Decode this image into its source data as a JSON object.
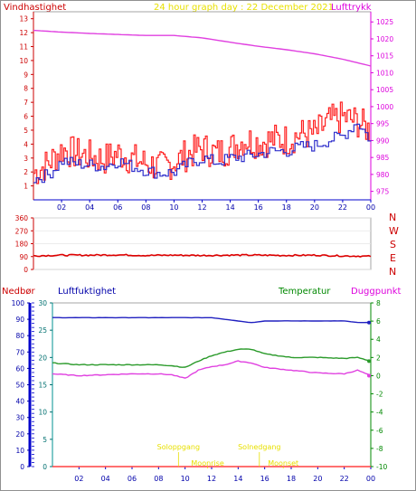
{
  "header": {
    "left_label": "Vindhastighet",
    "title": "24 hour graph day : 22 December 2021",
    "right_label": "Lufttrykk"
  },
  "middle_panel": {
    "direction_letters": [
      "N",
      "W",
      "S",
      "E",
      "N"
    ]
  },
  "bottom_header": {
    "nedbor_label": "Nedbør",
    "luft_label": "Luftfuktighet",
    "temp_label": "Temperatur",
    "dugg_label": "Duggpunkt"
  },
  "annotations": [
    {
      "text": "Soloppgang",
      "x": 9.5
    },
    {
      "text": "Solnedgang",
      "x": 15.6
    },
    {
      "text": "Moonrise",
      "x": 11.7
    },
    {
      "text": "Moonset",
      "x": 17.4
    }
  ],
  "colors": {
    "wind": "#ff2020",
    "wind_avg": "#3030cc",
    "pressure": "#e040e0",
    "direction": "#dd0000",
    "humidity": "#2020c0",
    "temperature": "#2a9a2a",
    "dewpoint": "#e040e0",
    "rain": "#2020ff",
    "sun_text": "#e8e000",
    "frame_blue": "#0000cc",
    "frame_red": "#cc0000",
    "frame_magenta": "#dd00dd",
    "frame_green": "#008800",
    "frame_teal": "#009090"
  },
  "chart_data": [
    {
      "type": "line",
      "title": "24 hour graph day : 22 December 2021",
      "xticks": [
        "02",
        "04",
        "06",
        "08",
        "10",
        "12",
        "14",
        "16",
        "18",
        "20",
        "22",
        "00"
      ],
      "xlim": [
        0,
        24
      ],
      "y_left": {
        "label": "Vindhastighet",
        "ticks": [
          1,
          2,
          3,
          4,
          5,
          6,
          7,
          8,
          9,
          10,
          11,
          12,
          13
        ],
        "ylim": [
          0,
          13.5
        ]
      },
      "y_right": {
        "label": "Lufttrykk",
        "ticks": [
          975,
          980,
          985,
          990,
          995,
          1000,
          1005,
          1010,
          1015,
          1020,
          1025
        ],
        "ylim": [
          972.5,
          1028
        ]
      },
      "series": [
        {
          "name": "Vindhastighet",
          "axis": "left",
          "style": "gust",
          "x": [
            0,
            1,
            2,
            3,
            4,
            5,
            6,
            7,
            8,
            9,
            10,
            11,
            12,
            13,
            14,
            15,
            16,
            17,
            18,
            19,
            20,
            21,
            22,
            23,
            24
          ],
          "values": [
            1.8,
            2.5,
            3.5,
            3.2,
            3.0,
            2.8,
            3.2,
            2.8,
            2.5,
            2.2,
            2.6,
            3.2,
            3.6,
            3.2,
            3.6,
            4.2,
            4.0,
            4.2,
            4.2,
            4.6,
            4.6,
            5.5,
            5.8,
            5.5,
            4.8
          ]
        },
        {
          "name": "",
          "axis": "left",
          "style": "average",
          "x": [
            0,
            1,
            2,
            3,
            4,
            5,
            6,
            7,
            8,
            9,
            10,
            11,
            12,
            13,
            14,
            15,
            16,
            17,
            18,
            19,
            20,
            21,
            22,
            23,
            24
          ],
          "values": [
            1.5,
            1.8,
            2.8,
            2.6,
            2.5,
            2.4,
            2.8,
            2.4,
            2.1,
            1.9,
            2.0,
            2.6,
            3.0,
            2.7,
            3.0,
            3.1,
            3.3,
            3.5,
            3.5,
            3.8,
            3.9,
            4.3,
            4.6,
            5.6,
            4.2
          ]
        },
        {
          "name": "Lufttrykk",
          "axis": "right",
          "x": [
            0,
            2,
            4,
            6,
            8,
            10,
            12,
            14,
            16,
            18,
            20,
            22,
            24
          ],
          "values": [
            1022.5,
            1022.0,
            1021.6,
            1021.3,
            1021.0,
            1021.0,
            1020.3,
            1019.0,
            1017.8,
            1016.8,
            1015.6,
            1014.0,
            1012.0
          ]
        }
      ]
    },
    {
      "type": "line",
      "title": "",
      "xticks": [
        "02",
        "04",
        "06",
        "08",
        "10",
        "12",
        "14",
        "16",
        "18",
        "20",
        "22",
        "00"
      ],
      "xlim": [
        0,
        24
      ],
      "y_left": {
        "ticks": [
          0,
          90,
          180,
          270,
          360
        ],
        "ylim": [
          0,
          360
        ]
      },
      "series": [
        {
          "name": "",
          "x": [
            0,
            2,
            4,
            6,
            8,
            10,
            12,
            14,
            16,
            18,
            20,
            22,
            24
          ],
          "values": [
            95,
            100,
            100,
            102,
            98,
            100,
            98,
            100,
            100,
            98,
            100,
            95,
            92
          ]
        }
      ]
    },
    {
      "type": "line",
      "title": "",
      "xticks": [
        "02",
        "04",
        "06",
        "08",
        "10",
        "12",
        "14",
        "16",
        "18",
        "20",
        "22",
        "00"
      ],
      "xlim": [
        0,
        24
      ],
      "y_nedbor": {
        "label": "Nedbør",
        "ticks": [
          0,
          10,
          20,
          30,
          40,
          50,
          60,
          70,
          80,
          90,
          100
        ],
        "ylim": [
          0,
          100
        ]
      },
      "y_luft": {
        "label": "Luftfuktighet",
        "ticks": [
          0,
          5,
          10,
          15,
          20,
          25,
          30
        ],
        "ylim": [
          0,
          30
        ]
      },
      "y_right": {
        "label": "Temperatur",
        "ticks": [
          -10,
          -8,
          -6,
          -4,
          -2,
          0,
          2,
          4,
          6,
          8
        ],
        "ylim": [
          -10,
          8
        ]
      },
      "series": [
        {
          "name": "Luftfuktighet",
          "axis": "nedbor",
          "x": [
            0,
            2,
            4,
            6,
            8,
            10,
            12,
            14,
            15,
            16,
            18,
            20,
            22,
            23,
            24
          ],
          "values": [
            91,
            91,
            91,
            91,
            91,
            91,
            91,
            89,
            88,
            89,
            89,
            89,
            89,
            88,
            88
          ]
        },
        {
          "name": "Temperatur",
          "axis": "right",
          "x": [
            0,
            2,
            4,
            6,
            8,
            9,
            10,
            11,
            12,
            13,
            14,
            15,
            16,
            18,
            20,
            22,
            23,
            24
          ],
          "values": [
            1.4,
            1.2,
            1.2,
            1.2,
            1.2,
            1.1,
            0.9,
            1.6,
            2.2,
            2.6,
            2.9,
            2.9,
            2.4,
            2.0,
            2.0,
            1.9,
            2.0,
            1.6
          ]
        },
        {
          "name": "Duggpunkt",
          "axis": "right",
          "x": [
            0,
            2,
            4,
            6,
            8,
            9,
            10,
            11,
            12,
            13,
            14,
            15,
            16,
            18,
            20,
            22,
            23,
            24
          ],
          "values": [
            0.2,
            0.0,
            0.1,
            0.2,
            0.2,
            0.1,
            -0.3,
            0.6,
            1.0,
            1.2,
            1.6,
            1.4,
            0.9,
            0.6,
            0.3,
            0.2,
            0.6,
            0.0
          ]
        },
        {
          "name": "Nedbør",
          "axis": "nedbor",
          "x": [
            0,
            24
          ],
          "values": [
            0,
            0
          ]
        }
      ]
    }
  ]
}
